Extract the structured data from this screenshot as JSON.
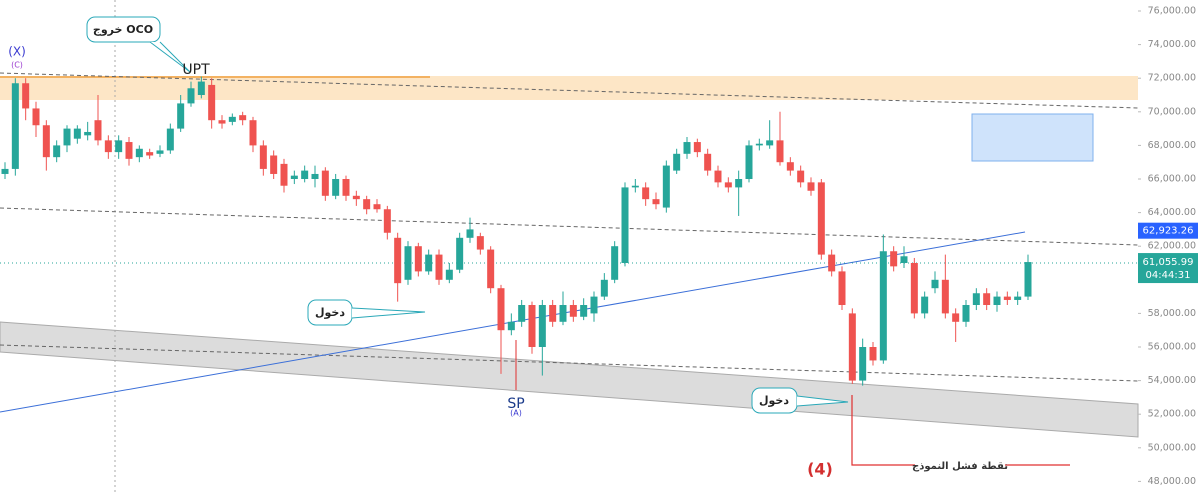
{
  "chart_data": {
    "type": "candlestick",
    "series": {
      "open": [
        66300,
        66600,
        71700,
        70200,
        69200,
        67300,
        68000,
        68400,
        68600,
        69500,
        68300,
        67600,
        68200,
        67300,
        67600,
        67500,
        67700,
        69000,
        70500,
        71000,
        71600,
        69500,
        69400,
        69800,
        69500,
        68000,
        67400,
        66900,
        66000,
        66000,
        66000,
        66500,
        65000,
        66000,
        65000,
        64800,
        64500,
        64200,
        62500,
        60000,
        62000,
        60500,
        61500,
        60000,
        60600,
        62500,
        62600,
        61800,
        59500,
        57000,
        57500,
        58500,
        56000,
        58500,
        57500,
        58500,
        57800,
        58000,
        59000,
        60000,
        61000,
        65500,
        65500,
        64800,
        64300,
        66500,
        67500,
        68200,
        67500,
        66500,
        65800,
        65500,
        66000,
        68000,
        68000,
        68300,
        67000,
        66500,
        65800,
        65800,
        61500,
        60500,
        58000,
        54000,
        56000,
        55200,
        61700,
        61000,
        61000,
        58000,
        59500,
        60000,
        58000,
        57500,
        58500,
        59200,
        58500,
        59000,
        58800,
        59000
      ],
      "high": [
        67000,
        72000,
        72000,
        70600,
        69500,
        68300,
        69200,
        69200,
        69400,
        71000,
        68600,
        68600,
        68500,
        68000,
        67800,
        68000,
        69300,
        71000,
        71800,
        72100,
        72000,
        69800,
        69900,
        70000,
        69700,
        68300,
        67700,
        67200,
        66500,
        66800,
        66800,
        66700,
        66300,
        66200,
        65300,
        65000,
        64800,
        64400,
        62800,
        62300,
        62200,
        61800,
        61800,
        61000,
        62800,
        63700,
        62800,
        62000,
        59700,
        58000,
        58800,
        58700,
        58800,
        58800,
        59300,
        58800,
        58900,
        59300,
        60400,
        62300,
        65800,
        66000,
        65800,
        65200,
        67100,
        67800,
        68500,
        68400,
        67800,
        66800,
        66100,
        66500,
        68300,
        68400,
        69500,
        70000,
        67300,
        66800,
        66100,
        66000,
        61800,
        60800,
        58300,
        56500,
        56300,
        62700,
        62000,
        62000,
        61300,
        59300,
        60500,
        61500,
        58300,
        58800,
        59500,
        59500,
        59300,
        59300,
        59300,
        61500
      ],
      "low": [
        66000,
        66200,
        69500,
        68500,
        66500,
        67000,
        67600,
        68100,
        68300,
        68000,
        67200,
        67200,
        66800,
        67000,
        67200,
        67300,
        67500,
        68800,
        70300,
        70800,
        69000,
        69000,
        69200,
        69200,
        67600,
        66200,
        66000,
        65200,
        65700,
        65800,
        65500,
        64700,
        64800,
        64700,
        64400,
        63900,
        64000,
        62400,
        58700,
        59700,
        60200,
        60300,
        59700,
        59800,
        60400,
        62200,
        61500,
        59200,
        54400,
        56700,
        57200,
        55600,
        54300,
        57200,
        57300,
        57500,
        57600,
        57500,
        58800,
        59800,
        60800,
        65200,
        64400,
        64200,
        64000,
        66300,
        67200,
        67300,
        66200,
        65500,
        65200,
        63800,
        65800,
        67700,
        67800,
        66800,
        66200,
        65500,
        65000,
        61200,
        60200,
        58200,
        53800,
        53700,
        54900,
        55000,
        60500,
        60700,
        57700,
        57700,
        59200,
        57700,
        56300,
        57200,
        58200,
        58200,
        58100,
        58500,
        58500,
        58800
      ],
      "close": [
        66600,
        71700,
        70200,
        69200,
        67300,
        68000,
        69000,
        69000,
        68800,
        68300,
        67600,
        68300,
        67200,
        67800,
        67400,
        67700,
        69000,
        70500,
        71400,
        71800,
        69500,
        69300,
        69700,
        69500,
        68000,
        66600,
        66300,
        65600,
        66200,
        66500,
        66300,
        65000,
        66000,
        65000,
        64800,
        64200,
        64200,
        62800,
        59800,
        62000,
        60500,
        61500,
        60000,
        60600,
        62500,
        63000,
        61800,
        59500,
        57000,
        57500,
        58500,
        56000,
        58500,
        57500,
        58500,
        57800,
        58500,
        59000,
        60000,
        62000,
        65500,
        65600,
        64800,
        64500,
        66800,
        67500,
        68200,
        67600,
        66500,
        65800,
        65500,
        66000,
        68000,
        68100,
        68300,
        67000,
        66500,
        65800,
        65300,
        61500,
        60500,
        58500,
        54000,
        56000,
        55200,
        61700,
        60800,
        61400,
        58000,
        59000,
        60000,
        58000,
        57500,
        58500,
        59200,
        58500,
        59000,
        58800,
        59000,
        61055.99
      ]
    },
    "up_color": "#26a69a",
    "down_color": "#ef5350",
    "ylim": [
      47250,
      76655
    ],
    "yticks": [
      {
        "value": 76000,
        "label": "76,000.00"
      },
      {
        "value": 74000,
        "label": "74,000.00"
      },
      {
        "value": 72000,
        "label": "72,000.00"
      },
      {
        "value": 70000,
        "label": "70,000.00"
      },
      {
        "value": 68000,
        "label": "68,000.00"
      },
      {
        "value": 66000,
        "label": "66,000.00"
      },
      {
        "value": 64000,
        "label": "64,000.00"
      },
      {
        "value": 62000,
        "label": "62,000.00"
      },
      {
        "value": 58000,
        "label": "58,000.00"
      },
      {
        "value": 56000,
        "label": "56,000.00"
      },
      {
        "value": 54000,
        "label": "54,000.00"
      },
      {
        "value": 52000,
        "label": "52,000.00"
      },
      {
        "value": 50000,
        "label": "50,000.00"
      },
      {
        "value": 48000,
        "label": "48,000.00"
      }
    ],
    "marker_price": {
      "value": 62923.26,
      "label": "62,923.26"
    },
    "current_price": {
      "value": 61055.99,
      "label": "61,055.99"
    },
    "countdown": "04:44:31",
    "annotations": [
      "خروج OCO",
      "دخول",
      "دخول",
      "نقطة فشل النموذج",
      "(X)",
      "(C)",
      "UPT",
      "SP",
      "(A)",
      "(4)"
    ]
  }
}
